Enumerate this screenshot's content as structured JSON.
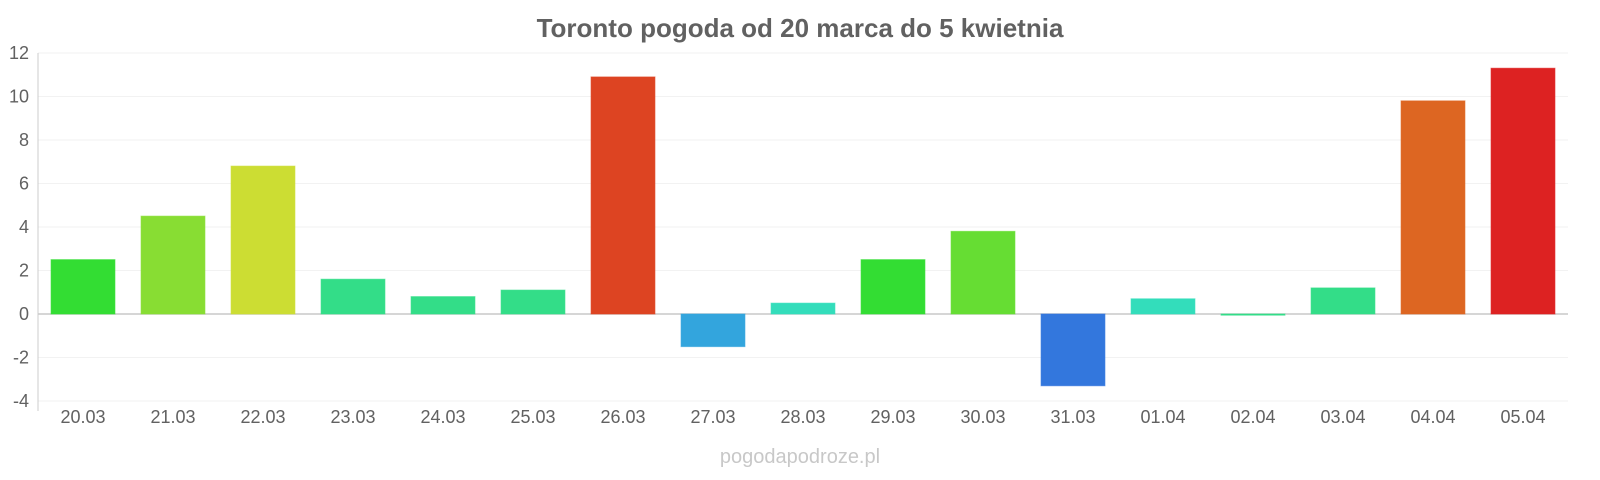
{
  "chart_data": {
    "type": "bar",
    "title": "Toronto pogoda od 20 marca do 5 kwietnia",
    "xlabel": "",
    "ylabel": "",
    "categories": [
      "20.03",
      "21.03",
      "22.03",
      "23.03",
      "24.03",
      "25.03",
      "26.03",
      "27.03",
      "28.03",
      "29.03",
      "30.03",
      "31.03",
      "01.04",
      "02.04",
      "03.04",
      "04.04",
      "05.04"
    ],
    "values": [
      2.5,
      4.5,
      6.8,
      1.6,
      0.8,
      1.1,
      10.9,
      -1.5,
      0.5,
      2.5,
      3.8,
      -3.3,
      0.7,
      0.0,
      1.2,
      9.8,
      11.3
    ],
    "colors": [
      "#33dd33",
      "#88dd33",
      "#ccdd33",
      "#33dd88",
      "#33dd88",
      "#33dd88",
      "#dd4422",
      "#33a5dd",
      "#33ddbb",
      "#33dd33",
      "#66dd33",
      "#3377dd",
      "#33ddbb",
      "#33dd88",
      "#33dd88",
      "#dd6622",
      "#dd2222"
    ],
    "ylim": [
      -4,
      12
    ],
    "yticks": [
      "-4",
      "-2",
      "0",
      "2",
      "4",
      "6",
      "8",
      "10",
      "12"
    ],
    "grid": true,
    "legend": "none"
  },
  "watermark": "pogodapodroze.pl"
}
